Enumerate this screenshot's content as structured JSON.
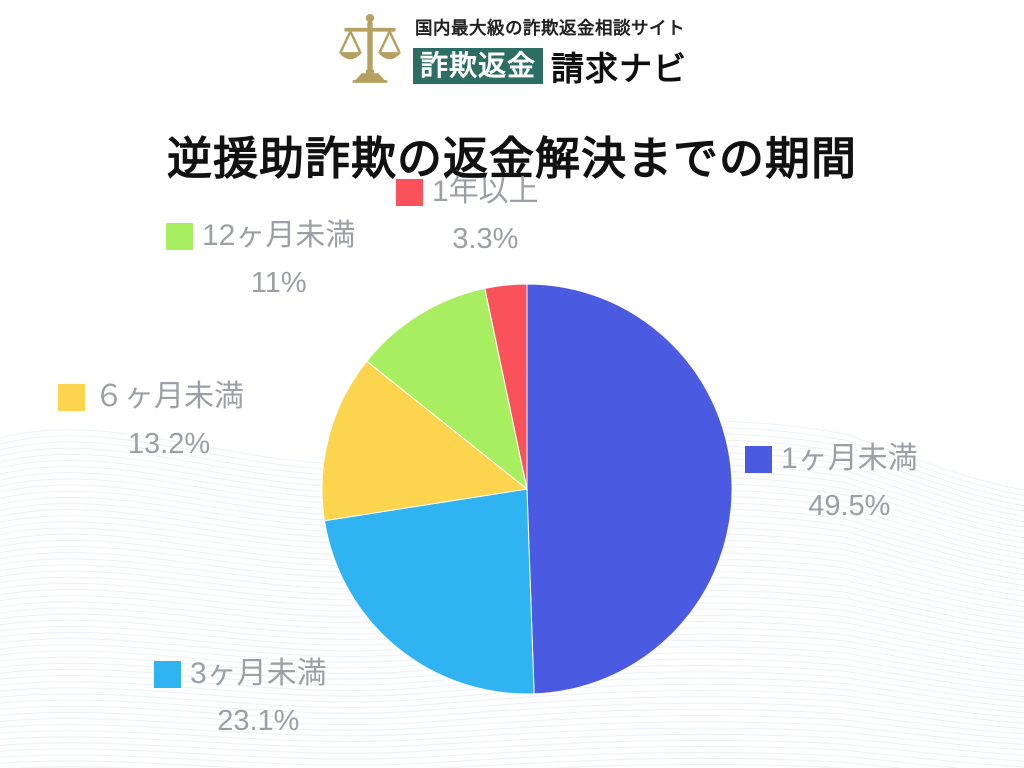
{
  "header": {
    "site_tagline": "国内最大級の詐欺返金相談サイト",
    "logo_badge": "詐欺返金",
    "logo_suffix": "請求ナビ",
    "badge_bg": "#2C6E64",
    "icon_color": "#B5A061",
    "icon": "scales-of-justice-icon"
  },
  "title": "逆援助詐欺の返金解決までの期間",
  "chart_data": {
    "type": "pie",
    "title": "逆援助詐欺の返金解決までの期間",
    "start_angle_deg": 0,
    "direction": "clockwise",
    "legend_position": "around",
    "slices": [
      {
        "label": "1ヶ月未満",
        "value": 49.5,
        "display": "49.5%",
        "color": "#4A5AE1"
      },
      {
        "label": "3ヶ月未満",
        "value": 23.1,
        "display": "23.1%",
        "color": "#2FB3F1"
      },
      {
        "label": "６ヶ月未満",
        "value": 13.2,
        "display": "13.2%",
        "color": "#FDD44E"
      },
      {
        "label": "12ヶ月未満",
        "value": 11,
        "display": "11%",
        "color": "#A8EE61"
      },
      {
        "label": "1年以上",
        "value": 3.3,
        "display": "3.3%",
        "color": "#F9525B"
      }
    ]
  }
}
